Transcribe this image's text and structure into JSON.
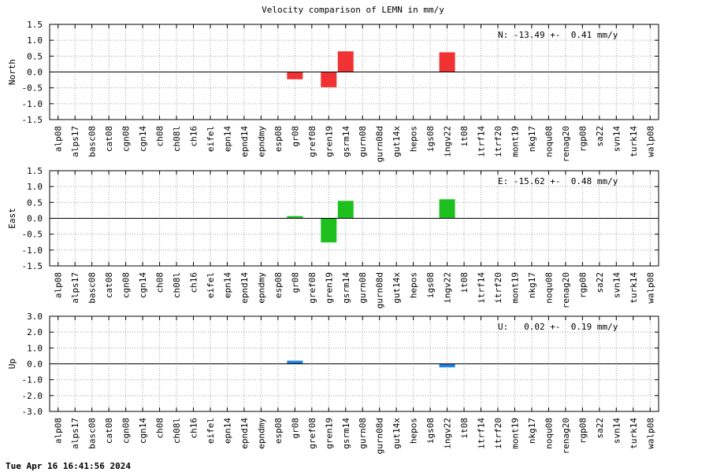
{
  "title": "Velocity comparison of LEMN in mm/y",
  "footer": "Tue Apr 16 16:41:56 2024",
  "chart_data": [
    {
      "type": "bar",
      "title": "Velocity comparison of LEMN in mm/y",
      "ylabel": "North",
      "ylim": [
        -1.5,
        1.5
      ],
      "yticks": [
        "1.5",
        "1.0",
        "0.5",
        "0.0",
        "-0.5",
        "-1.0",
        "-1.5"
      ],
      "annotation": "N: -13.49 +-  0.41 mm/y",
      "color": "#f03232",
      "grid": true,
      "categories": [
        "alp08",
        "alps17",
        "basc08",
        "cat08",
        "cgn08",
        "cgn14",
        "ch08",
        "ch08l",
        "ch16",
        "eifel",
        "epn14",
        "epnd14",
        "epndmy",
        "esp08",
        "gr08",
        "gref08",
        "gren19",
        "gsrm14",
        "gurn08",
        "gurn08d",
        "gut14x",
        "hepos",
        "igs08",
        "ingv22",
        "it08",
        "itrf14",
        "itrf20",
        "mont19",
        "nkg17",
        "noqu08",
        "renag20",
        "rgp08",
        "sa22",
        "svn14",
        "turk14",
        "walp08"
      ],
      "values": [
        null,
        null,
        null,
        null,
        null,
        null,
        null,
        null,
        null,
        null,
        null,
        null,
        null,
        null,
        -0.23,
        null,
        -0.48,
        0.65,
        null,
        null,
        null,
        null,
        null,
        0.62,
        null,
        null,
        null,
        null,
        null,
        null,
        null,
        null,
        null,
        null,
        null,
        null
      ]
    },
    {
      "type": "bar",
      "ylabel": "East",
      "ylim": [
        -1.5,
        1.5
      ],
      "yticks": [
        "1.5",
        "1.0",
        "0.5",
        "0.0",
        "-0.5",
        "-1.0",
        "-1.5"
      ],
      "annotation": "E: -15.62 +-  0.48 mm/y",
      "color": "#1ec01e",
      "grid": true,
      "categories": [
        "alp08",
        "alps17",
        "basc08",
        "cat08",
        "cgn08",
        "cgn14",
        "ch08",
        "ch08l",
        "ch16",
        "eifel",
        "epn14",
        "epnd14",
        "epndmy",
        "esp08",
        "gr08",
        "gref08",
        "gren19",
        "gsrm14",
        "gurn08",
        "gurn08d",
        "gut14x",
        "hepos",
        "igs08",
        "ingv22",
        "it08",
        "itrf14",
        "itrf20",
        "mont19",
        "nkg17",
        "noqu08",
        "renag20",
        "rgp08",
        "sa22",
        "svn14",
        "turk14",
        "walp08"
      ],
      "values": [
        null,
        null,
        null,
        null,
        null,
        null,
        null,
        null,
        null,
        null,
        null,
        null,
        null,
        null,
        0.07,
        null,
        -0.76,
        0.55,
        null,
        null,
        null,
        null,
        null,
        0.6,
        null,
        null,
        null,
        null,
        null,
        null,
        null,
        null,
        null,
        null,
        null,
        null
      ]
    },
    {
      "type": "bar",
      "ylabel": "Up",
      "ylim": [
        -3.0,
        3.0
      ],
      "yticks": [
        "3.0",
        "2.0",
        "1.0",
        "0.0",
        "-1.0",
        "-2.0",
        "-3.0"
      ],
      "annotation": "U:   0.02 +-  0.19 mm/y",
      "color": "#1e82dc",
      "grid": true,
      "categories": [
        "alp08",
        "alps17",
        "basc08",
        "cat08",
        "cgn08",
        "cgn14",
        "ch08",
        "ch08l",
        "ch16",
        "eifel",
        "epn14",
        "epnd14",
        "epndmy",
        "esp08",
        "gr08",
        "gref08",
        "gren19",
        "gsrm14",
        "gurn08",
        "gurn08d",
        "gut14x",
        "hepos",
        "igs08",
        "ingv22",
        "it08",
        "itrf14",
        "itrf20",
        "mont19",
        "nkg17",
        "noqu08",
        "renag20",
        "rgp08",
        "sa22",
        "svn14",
        "turk14",
        "walp08"
      ],
      "values": [
        null,
        null,
        null,
        null,
        null,
        null,
        null,
        null,
        null,
        null,
        null,
        null,
        null,
        null,
        0.2,
        null,
        null,
        null,
        null,
        null,
        null,
        null,
        null,
        -0.22,
        null,
        null,
        null,
        null,
        null,
        null,
        null,
        null,
        null,
        null,
        null,
        null
      ]
    }
  ]
}
